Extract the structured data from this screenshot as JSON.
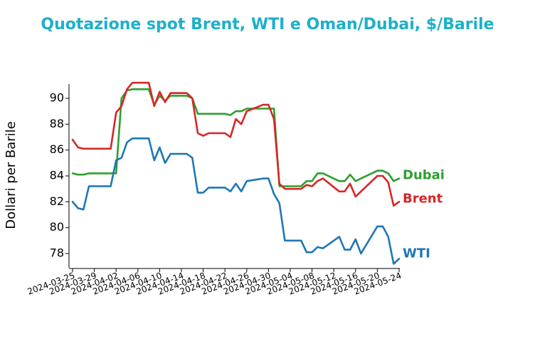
{
  "chart_data": {
    "type": "line",
    "title": "Quotazione spot Brent, WTI e Oman/Dubai, $/Barile",
    "xlabel": "",
    "ylabel": "Dollari per Barile",
    "ylim": [
      76.9,
      91.1
    ],
    "yticks": [
      78,
      80,
      82,
      84,
      86,
      88,
      90
    ],
    "xlim": [
      "2024-03-25",
      "2024-05-24"
    ],
    "xticks": [
      "2024-03-25",
      "2024-03-29",
      "2024-04-02",
      "2024-04-06",
      "2024-04-10",
      "2024-04-14",
      "2024-04-18",
      "2024-04-22",
      "2024-04-26",
      "2024-04-30",
      "2024-05-04",
      "2024-05-08",
      "2024-05-12",
      "2024-05-16",
      "2024-05-20",
      "2024-05-24"
    ],
    "grid": false,
    "legend": "inline labels at right end of lines",
    "series": [
      {
        "name": "Dubai",
        "color": "#2ca02c",
        "points": [
          [
            "2024-03-25",
            84.2
          ],
          [
            "2024-03-26",
            84.1
          ],
          [
            "2024-03-27",
            84.1
          ],
          [
            "2024-03-28",
            84.2
          ],
          [
            "2024-03-29",
            84.2
          ],
          [
            "2024-04-01",
            84.2
          ],
          [
            "2024-04-02",
            84.2
          ],
          [
            "2024-04-03",
            90.0
          ],
          [
            "2024-04-04",
            90.6
          ],
          [
            "2024-04-05",
            90.7
          ],
          [
            "2024-04-08",
            90.7
          ],
          [
            "2024-04-09",
            89.5
          ],
          [
            "2024-04-10",
            90.2
          ],
          [
            "2024-04-11",
            89.8
          ],
          [
            "2024-04-12",
            90.2
          ],
          [
            "2024-04-15",
            90.2
          ],
          [
            "2024-04-16",
            90.0
          ],
          [
            "2024-04-17",
            88.8
          ],
          [
            "2024-04-18",
            88.8
          ],
          [
            "2024-04-19",
            88.8
          ],
          [
            "2024-04-22",
            88.8
          ],
          [
            "2024-04-23",
            88.7
          ],
          [
            "2024-04-24",
            89.0
          ],
          [
            "2024-04-25",
            89.0
          ],
          [
            "2024-04-26",
            89.2
          ],
          [
            "2024-04-29",
            89.2
          ],
          [
            "2024-04-30",
            89.2
          ],
          [
            "2024-05-01",
            89.2
          ],
          [
            "2024-05-02",
            83.2
          ],
          [
            "2024-05-03",
            83.2
          ],
          [
            "2024-05-06",
            83.2
          ],
          [
            "2024-05-07",
            83.6
          ],
          [
            "2024-05-08",
            83.6
          ],
          [
            "2024-05-09",
            84.2
          ],
          [
            "2024-05-10",
            84.2
          ],
          [
            "2024-05-13",
            83.6
          ],
          [
            "2024-05-14",
            83.6
          ],
          [
            "2024-05-15",
            84.1
          ],
          [
            "2024-05-16",
            83.6
          ],
          [
            "2024-05-17",
            83.8
          ],
          [
            "2024-05-20",
            84.4
          ],
          [
            "2024-05-21",
            84.4
          ],
          [
            "2024-05-22",
            84.2
          ],
          [
            "2024-05-23",
            83.6
          ],
          [
            "2024-05-24",
            83.8
          ]
        ]
      },
      {
        "name": "Brent",
        "color": "#d62728",
        "points": [
          [
            "2024-03-25",
            86.8
          ],
          [
            "2024-03-26",
            86.2
          ],
          [
            "2024-03-27",
            86.1
          ],
          [
            "2024-03-28",
            86.1
          ],
          [
            "2024-03-29",
            86.1
          ],
          [
            "2024-04-01",
            86.1
          ],
          [
            "2024-04-02",
            88.9
          ],
          [
            "2024-04-03",
            89.4
          ],
          [
            "2024-04-04",
            90.7
          ],
          [
            "2024-04-05",
            91.2
          ],
          [
            "2024-04-08",
            91.2
          ],
          [
            "2024-04-09",
            89.4
          ],
          [
            "2024-04-10",
            90.5
          ],
          [
            "2024-04-11",
            89.7
          ],
          [
            "2024-04-12",
            90.4
          ],
          [
            "2024-04-15",
            90.4
          ],
          [
            "2024-04-16",
            90.0
          ],
          [
            "2024-04-17",
            87.3
          ],
          [
            "2024-04-18",
            87.1
          ],
          [
            "2024-04-19",
            87.3
          ],
          [
            "2024-04-22",
            87.3
          ],
          [
            "2024-04-23",
            87.0
          ],
          [
            "2024-04-24",
            88.4
          ],
          [
            "2024-04-25",
            88.0
          ],
          [
            "2024-04-26",
            89.0
          ],
          [
            "2024-04-29",
            89.5
          ],
          [
            "2024-04-30",
            89.5
          ],
          [
            "2024-05-01",
            88.4
          ],
          [
            "2024-05-02",
            83.4
          ],
          [
            "2024-05-03",
            83.0
          ],
          [
            "2024-05-06",
            83.0
          ],
          [
            "2024-05-07",
            83.3
          ],
          [
            "2024-05-08",
            83.2
          ],
          [
            "2024-05-09",
            83.6
          ],
          [
            "2024-05-10",
            83.8
          ],
          [
            "2024-05-13",
            82.8
          ],
          [
            "2024-05-14",
            82.8
          ],
          [
            "2024-05-15",
            83.4
          ],
          [
            "2024-05-16",
            82.4
          ],
          [
            "2024-05-17",
            82.8
          ],
          [
            "2024-05-20",
            84.0
          ],
          [
            "2024-05-21",
            84.0
          ],
          [
            "2024-05-22",
            83.5
          ],
          [
            "2024-05-23",
            81.7
          ],
          [
            "2024-05-24",
            82.0
          ]
        ]
      },
      {
        "name": "WTI",
        "color": "#1f77b4",
        "points": [
          [
            "2024-03-25",
            82.0
          ],
          [
            "2024-03-26",
            81.5
          ],
          [
            "2024-03-27",
            81.4
          ],
          [
            "2024-03-28",
            83.2
          ],
          [
            "2024-03-29",
            83.2
          ],
          [
            "2024-04-01",
            83.2
          ],
          [
            "2024-04-02",
            85.2
          ],
          [
            "2024-04-03",
            85.4
          ],
          [
            "2024-04-04",
            86.6
          ],
          [
            "2024-04-05",
            86.9
          ],
          [
            "2024-04-08",
            86.9
          ],
          [
            "2024-04-09",
            85.2
          ],
          [
            "2024-04-10",
            86.2
          ],
          [
            "2024-04-11",
            85.0
          ],
          [
            "2024-04-12",
            85.7
          ],
          [
            "2024-04-15",
            85.7
          ],
          [
            "2024-04-16",
            85.4
          ],
          [
            "2024-04-17",
            82.7
          ],
          [
            "2024-04-18",
            82.7
          ],
          [
            "2024-04-19",
            83.1
          ],
          [
            "2024-04-22",
            83.1
          ],
          [
            "2024-04-23",
            82.8
          ],
          [
            "2024-04-24",
            83.4
          ],
          [
            "2024-04-25",
            82.8
          ],
          [
            "2024-04-26",
            83.6
          ],
          [
            "2024-04-29",
            83.8
          ],
          [
            "2024-04-30",
            83.8
          ],
          [
            "2024-05-01",
            82.6
          ],
          [
            "2024-05-02",
            81.9
          ],
          [
            "2024-05-03",
            79.0
          ],
          [
            "2024-05-06",
            79.0
          ],
          [
            "2024-05-07",
            78.1
          ],
          [
            "2024-05-08",
            78.1
          ],
          [
            "2024-05-09",
            78.5
          ],
          [
            "2024-05-10",
            78.4
          ],
          [
            "2024-05-13",
            79.3
          ],
          [
            "2024-05-14",
            78.3
          ],
          [
            "2024-05-15",
            78.3
          ],
          [
            "2024-05-16",
            79.1
          ],
          [
            "2024-05-17",
            78.0
          ],
          [
            "2024-05-20",
            80.1
          ],
          [
            "2024-05-21",
            80.1
          ],
          [
            "2024-05-22",
            79.3
          ],
          [
            "2024-05-23",
            77.2
          ],
          [
            "2024-05-24",
            77.6
          ]
        ]
      }
    ]
  }
}
